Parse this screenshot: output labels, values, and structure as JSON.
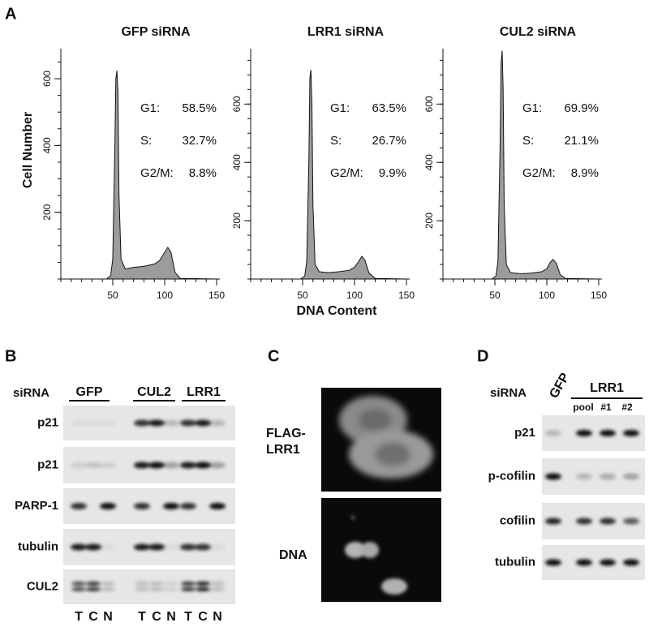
{
  "figure": {
    "panel_a": {
      "label": "A",
      "y_label": "Cell Number",
      "x_label": "DNA Content",
      "charts": [
        {
          "type": "area",
          "title": "GFP siRNA",
          "color": "#9c9c9c",
          "x": [
            44,
            48,
            50,
            52,
            53,
            54,
            55,
            56,
            58,
            62,
            70,
            80,
            90,
            95,
            100,
            103,
            106,
            110,
            115,
            150
          ],
          "values": [
            0,
            10,
            60,
            400,
            600,
            624,
            560,
            250,
            60,
            30,
            35,
            38,
            45,
            55,
            80,
            95,
            80,
            20,
            2,
            0
          ],
          "xlim": [
            0,
            150
          ],
          "ylim": [
            0,
            690
          ],
          "xticks": [
            50,
            100,
            150
          ],
          "yticks": [
            200,
            400,
            600
          ],
          "stats": [
            {
              "label": "G1:",
              "value": "58.5%"
            },
            {
              "label": "S:",
              "value": "32.7%"
            },
            {
              "label": "G2/M:",
              "value": "8.8%"
            }
          ]
        },
        {
          "type": "area",
          "title": "LRR1 siRNA",
          "color": "#9c9c9c",
          "x": [
            48,
            52,
            54,
            56,
            57,
            58,
            59,
            60,
            62,
            66,
            75,
            85,
            95,
            100,
            104,
            107,
            110,
            114,
            120,
            150
          ],
          "values": [
            0,
            10,
            60,
            400,
            690,
            717,
            600,
            250,
            50,
            25,
            22,
            25,
            30,
            40,
            60,
            78,
            65,
            20,
            2,
            0
          ],
          "xlim": [
            0,
            150
          ],
          "ylim": [
            0,
            790
          ],
          "xticks": [
            50,
            100,
            150
          ],
          "yticks": [
            200,
            400,
            600
          ],
          "stats": [
            {
              "label": "G1:",
              "value": "63.5%"
            },
            {
              "label": "S:",
              "value": "26.7%"
            },
            {
              "label": "G2/M:",
              "value": "9.9%"
            }
          ]
        },
        {
          "type": "area",
          "title": "CUL2 siRNA",
          "color": "#9c9c9c",
          "x": [
            47,
            51,
            53,
            55,
            56,
            57,
            58,
            59,
            61,
            65,
            75,
            85,
            95,
            100,
            103,
            106,
            109,
            113,
            118,
            150
          ],
          "values": [
            0,
            10,
            60,
            450,
            740,
            783,
            650,
            250,
            50,
            22,
            18,
            20,
            25,
            35,
            55,
            67,
            55,
            15,
            2,
            0
          ],
          "xlim": [
            0,
            150
          ],
          "ylim": [
            0,
            790
          ],
          "xticks": [
            50,
            100,
            150
          ],
          "yticks": [
            200,
            400,
            600
          ],
          "stats": [
            {
              "label": "G1:",
              "value": "69.9%"
            },
            {
              "label": "S:",
              "value": "21.1%"
            },
            {
              "label": "G2/M:",
              "value": "8.9%"
            }
          ]
        }
      ]
    },
    "panel_b": {
      "label": "B",
      "row_header": "siRNA",
      "groups": [
        "GFP",
        "CUL2",
        "LRR1"
      ],
      "rows": [
        "p21",
        "p21",
        "PARP-1",
        "tubulin",
        "CUL2"
      ],
      "lanes": [
        "T",
        "C",
        "N",
        "T",
        "C",
        "N",
        "T",
        "C",
        "N"
      ]
    },
    "panel_c": {
      "label": "C",
      "image_labels": [
        [
          "FLAG-",
          "LRR1"
        ],
        [
          "DNA"
        ]
      ]
    },
    "panel_d": {
      "label": "D",
      "row_header": "siRNA",
      "control": "GFP",
      "group": "LRR1",
      "subgroups": [
        "pool",
        "#1",
        "#2"
      ],
      "rows": [
        "p21",
        "p-cofilin",
        "cofilin",
        "tubulin"
      ]
    }
  }
}
